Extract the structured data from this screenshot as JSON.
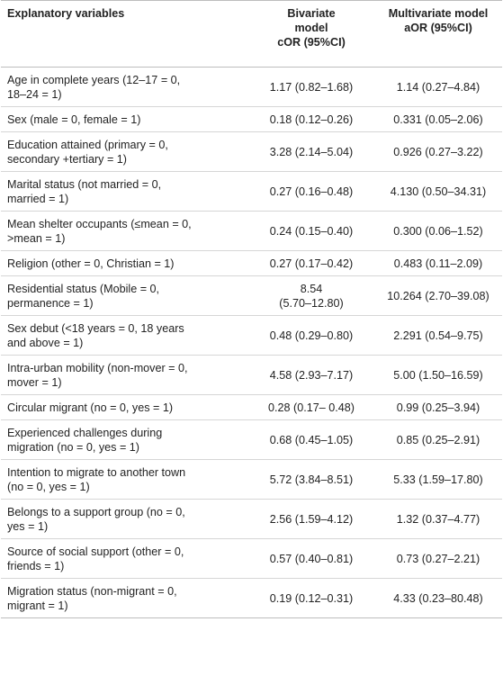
{
  "header": {
    "col1": "Explanatory variables",
    "col2_lines": [
      "Bivariate",
      "model",
      "cOR (95%CI)"
    ],
    "col3_lines": [
      "Multivariate model",
      "aOR (95%CI)"
    ]
  },
  "rows": [
    {
      "var": [
        "Age in complete years (12–17 = 0,",
        "18–24 = 1)"
      ],
      "cor": [
        "1.17 (0.82–1.68)"
      ],
      "aor": [
        "1.14 (0.27–4.84)"
      ],
      "h": 44
    },
    {
      "var": [
        "Sex (male = 0, female = 1)"
      ],
      "cor": [
        "0.18 (0.12–0.26)"
      ],
      "aor": [
        "0.331 (0.05–2.06)"
      ],
      "h": 28
    },
    {
      "var": [
        "Education attained (primary = 0,",
        "secondary +tertiary = 1)"
      ],
      "cor": [
        "3.28 (2.14–5.04)"
      ],
      "aor": [
        "0.926 (0.27–3.22)"
      ],
      "h": 44
    },
    {
      "var": [
        "Marital status (not married = 0,",
        "married = 1)"
      ],
      "cor": [
        "0.27 (0.16–0.48)"
      ],
      "aor": [
        "4.130 (0.50–34.31)"
      ],
      "h": 44
    },
    {
      "var": [
        "Mean shelter occupants (≤mean = 0,",
        ">mean = 1)"
      ],
      "cor": [
        "0.24 (0.15–0.40)"
      ],
      "aor": [
        "0.300 (0.06–1.52)"
      ],
      "h": 44
    },
    {
      "var": [
        "Religion (other = 0, Christian = 1)"
      ],
      "cor": [
        "0.27 (0.17–0.42)"
      ],
      "aor": [
        "0.483 (0.11–2.09)"
      ],
      "h": 28
    },
    {
      "var": [
        "Residential status (Mobile = 0,",
        "permanence = 1)"
      ],
      "cor": [
        "8.54",
        "(5.70–12.80)"
      ],
      "aor": [
        "10.264 (2.70–39.08)"
      ],
      "h": 44
    },
    {
      "var": [
        "Sex debut (<18 years = 0, 18 years",
        "and above = 1)"
      ],
      "cor": [
        "0.48 (0.29–0.80)"
      ],
      "aor": [
        "2.291 (0.54–9.75)"
      ],
      "h": 44
    },
    {
      "var": [
        "Intra-urban mobility (non-mover = 0,",
        "mover = 1)"
      ],
      "cor": [
        "4.58 (2.93–7.17)"
      ],
      "aor": [
        "5.00 (1.50–16.59)"
      ],
      "h": 44
    },
    {
      "var": [
        "Circular migrant (no = 0, yes = 1)"
      ],
      "cor": [
        "0.28 (0.17– 0.48)"
      ],
      "aor": [
        "0.99 (0.25–3.94)"
      ],
      "h": 28
    },
    {
      "var": [
        "Experienced challenges during",
        "migration (no = 0, yes = 1)"
      ],
      "cor": [
        "0.68 (0.45–1.05)"
      ],
      "aor": [
        "0.85 (0.25–2.91)"
      ],
      "h": 44
    },
    {
      "var": [
        "Intention to migrate to another town",
        "(no = 0, yes = 1)"
      ],
      "cor": [
        "5.72 (3.84–8.51)"
      ],
      "aor": [
        "5.33 (1.59–17.80)"
      ],
      "h": 44
    },
    {
      "var": [
        "Belongs to a support group (no = 0,",
        "yes = 1)"
      ],
      "cor": [
        "2.56 (1.59–4.12)"
      ],
      "aor": [
        "1.32 (0.37–4.77)"
      ],
      "h": 44
    },
    {
      "var": [
        "Source of social support (other = 0,",
        "friends = 1)"
      ],
      "cor": [
        "0.57 (0.40–0.81)"
      ],
      "aor": [
        "0.73 (0.27–2.21)"
      ],
      "h": 44
    },
    {
      "var": [
        "Migration status (non-migrant = 0,",
        "migrant = 1)"
      ],
      "cor": [
        "0.19 (0.12–0.31)"
      ],
      "aor": [
        "4.33 (0.23–80.48)"
      ],
      "h": 44
    }
  ]
}
